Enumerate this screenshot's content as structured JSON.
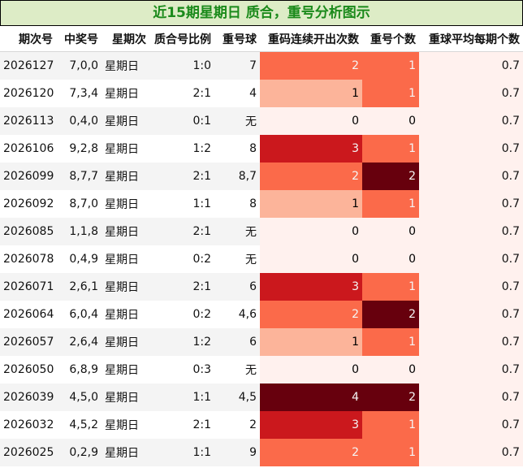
{
  "title": "近15期星期日 质合，重号分析图示",
  "headers": {
    "period": "期次号",
    "numbers": "中奖号",
    "weekday": "星期次",
    "ratio": "质合号比例",
    "repeat_ball": "重号球",
    "consecutive": "重码连续开出次数",
    "repeat_count": "重号个数",
    "avg": "重球平均每期个数"
  },
  "heat_colors": {
    "0": "#fff1ee",
    "1": "#fcb49a",
    "2": "#fb6a4a",
    "3": "#cb181d",
    "4": "#67000d"
  },
  "count_colors": {
    "0": "#fff1ee",
    "1": "#fb6a4a",
    "2": "#67000d"
  },
  "rows": [
    {
      "period": "2026127",
      "numbers": "7,0,0",
      "weekday": "星期日",
      "ratio": "1:0",
      "repeat_ball": "7",
      "consecutive": "2",
      "repeat_count": "1",
      "avg": "0.7"
    },
    {
      "period": "2026120",
      "numbers": "7,3,4",
      "weekday": "星期日",
      "ratio": "2:1",
      "repeat_ball": "4",
      "consecutive": "1",
      "repeat_count": "1",
      "avg": "0.7"
    },
    {
      "period": "2026113",
      "numbers": "0,4,0",
      "weekday": "星期日",
      "ratio": "0:1",
      "repeat_ball": "无",
      "consecutive": "0",
      "repeat_count": "0",
      "avg": "0.7"
    },
    {
      "period": "2026106",
      "numbers": "9,2,8",
      "weekday": "星期日",
      "ratio": "1:2",
      "repeat_ball": "8",
      "consecutive": "3",
      "repeat_count": "1",
      "avg": "0.7"
    },
    {
      "period": "2026099",
      "numbers": "8,7,7",
      "weekday": "星期日",
      "ratio": "2:1",
      "repeat_ball": "8,7",
      "consecutive": "2",
      "repeat_count": "2",
      "avg": "0.7"
    },
    {
      "period": "2026092",
      "numbers": "8,7,0",
      "weekday": "星期日",
      "ratio": "1:1",
      "repeat_ball": "8",
      "consecutive": "1",
      "repeat_count": "1",
      "avg": "0.7"
    },
    {
      "period": "2026085",
      "numbers": "1,1,8",
      "weekday": "星期日",
      "ratio": "2:1",
      "repeat_ball": "无",
      "consecutive": "0",
      "repeat_count": "0",
      "avg": "0.7"
    },
    {
      "period": "2026078",
      "numbers": "0,4,9",
      "weekday": "星期日",
      "ratio": "0:2",
      "repeat_ball": "无",
      "consecutive": "0",
      "repeat_count": "0",
      "avg": "0.7"
    },
    {
      "period": "2026071",
      "numbers": "2,6,1",
      "weekday": "星期日",
      "ratio": "2:1",
      "repeat_ball": "6",
      "consecutive": "3",
      "repeat_count": "1",
      "avg": "0.7"
    },
    {
      "period": "2026064",
      "numbers": "6,0,4",
      "weekday": "星期日",
      "ratio": "0:2",
      "repeat_ball": "4,6",
      "consecutive": "2",
      "repeat_count": "2",
      "avg": "0.7"
    },
    {
      "period": "2026057",
      "numbers": "2,6,4",
      "weekday": "星期日",
      "ratio": "1:2",
      "repeat_ball": "6",
      "consecutive": "1",
      "repeat_count": "1",
      "avg": "0.7"
    },
    {
      "period": "2026050",
      "numbers": "6,8,9",
      "weekday": "星期日",
      "ratio": "0:3",
      "repeat_ball": "无",
      "consecutive": "0",
      "repeat_count": "0",
      "avg": "0.7"
    },
    {
      "period": "2026039",
      "numbers": "4,5,0",
      "weekday": "星期日",
      "ratio": "1:1",
      "repeat_ball": "4,5",
      "consecutive": "4",
      "repeat_count": "2",
      "avg": "0.7"
    },
    {
      "period": "2026032",
      "numbers": "4,5,2",
      "weekday": "星期日",
      "ratio": "2:1",
      "repeat_ball": "2",
      "consecutive": "3",
      "repeat_count": "1",
      "avg": "0.7"
    },
    {
      "period": "2026025",
      "numbers": "0,2,9",
      "weekday": "星期日",
      "ratio": "1:1",
      "repeat_ball": "9",
      "consecutive": "2",
      "repeat_count": "1",
      "avg": "0.7"
    }
  ]
}
